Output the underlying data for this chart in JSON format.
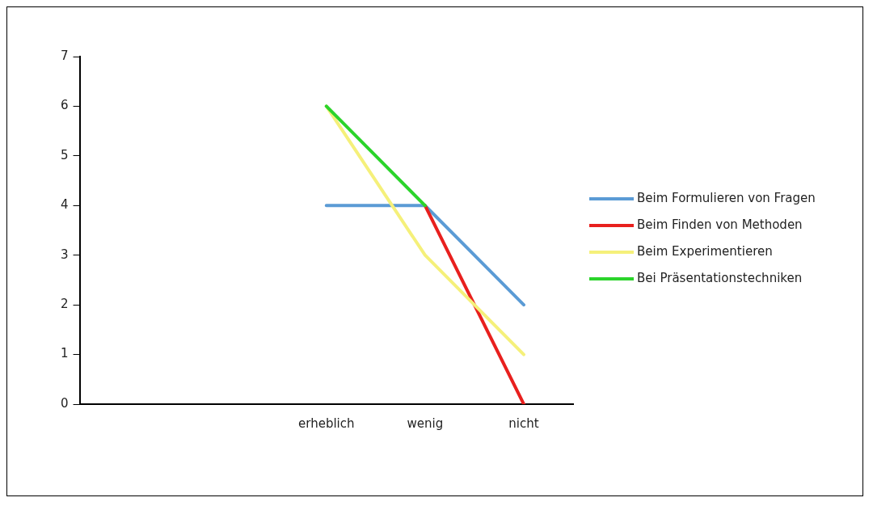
{
  "chart_data": {
    "type": "line",
    "categories": [
      null,
      null,
      "erheblich",
      "wenig",
      "nicht"
    ],
    "series": [
      {
        "name": "Beim Formulieren von Fragen",
        "color": "#5b9bd5",
        "values": [
          null,
          null,
          4,
          4,
          2
        ]
      },
      {
        "name": "Beim Finden von Methoden",
        "color": "#e8201e",
        "values": [
          null,
          null,
          null,
          4,
          0
        ]
      },
      {
        "name": "Beim Experimentieren",
        "color": "#f5f07a",
        "values": [
          null,
          null,
          6,
          3,
          1
        ]
      },
      {
        "name": "Bei Präsentationstechniken",
        "color": "#2bd42b",
        "values": [
          null,
          null,
          6,
          4,
          null
        ]
      }
    ],
    "ylim": [
      0,
      7
    ],
    "yticks": [
      0,
      1,
      2,
      3,
      4,
      5,
      6,
      7
    ],
    "grid": false,
    "legend": "right",
    "marker": "none",
    "line_style": "solid"
  }
}
